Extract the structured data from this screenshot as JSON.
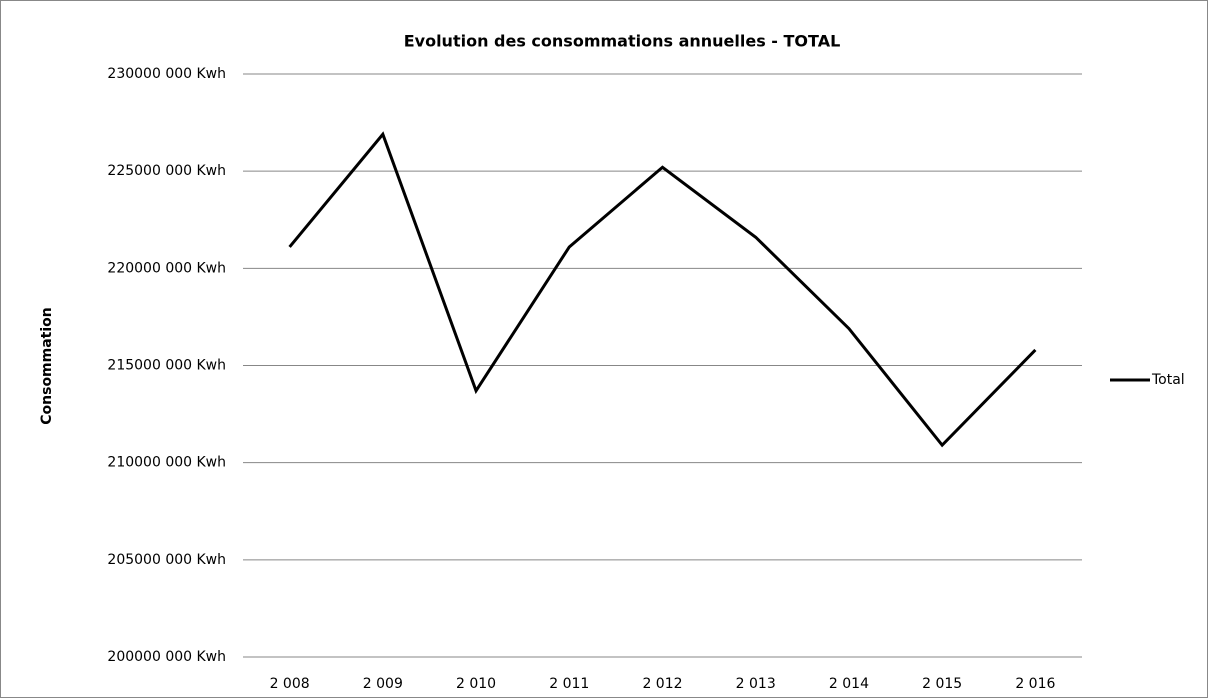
{
  "chart_data": {
    "type": "line",
    "title": "Evolution des consommations annuelles - TOTAL",
    "y_label": "Consommation",
    "categories": [
      "2 008",
      "2 009",
      "2 010",
      "2 011",
      "2 012",
      "2 013",
      "2 014",
      "2 015",
      "2 016"
    ],
    "series": [
      {
        "name": "Total",
        "color": "#000000",
        "values": [
          221100000,
          226900000,
          213700000,
          221100000,
          225200000,
          221600000,
          216900000,
          210900000,
          215800000
        ]
      }
    ],
    "ylim": [
      200000000,
      230000000
    ],
    "yticks": [
      {
        "value": 200000000,
        "label": "200000 000 Kwh"
      },
      {
        "value": 205000000,
        "label": "205000 000 Kwh"
      },
      {
        "value": 210000000,
        "label": "210000 000 Kwh"
      },
      {
        "value": 215000000,
        "label": "215000 000 Kwh"
      },
      {
        "value": 220000000,
        "label": "220000 000 Kwh"
      },
      {
        "value": 225000000,
        "label": "225000 000 Kwh"
      },
      {
        "value": 230000000,
        "label": "230000 000 Kwh"
      }
    ],
    "grid": true,
    "legend": "right"
  }
}
